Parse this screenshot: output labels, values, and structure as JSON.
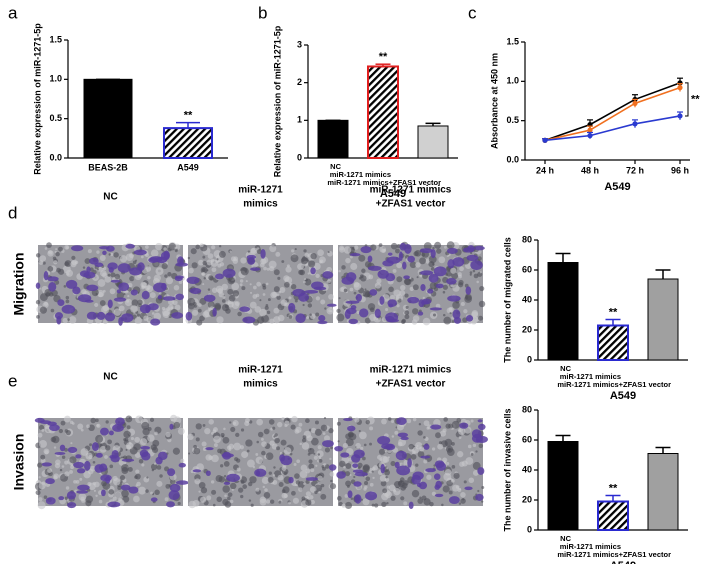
{
  "chart_data": [
    {
      "type": "bar",
      "panel": "a",
      "ylabel": "Relative expression of miR-1271-5p",
      "categories": [
        "BEAS-2B",
        "A549"
      ],
      "values": [
        1.0,
        0.38
      ],
      "errors": [
        0,
        0.07
      ],
      "colors": [
        "#000000",
        "#b0b0b0"
      ],
      "edgecolors": [
        "#000000",
        "#2a2ad0"
      ],
      "hatch": [
        false,
        true
      ],
      "ylim": [
        0,
        1.5
      ],
      "yticks": [
        {
          "value": 0,
          "label": "0.0"
        },
        {
          "value": 0.5,
          "label": "0.5"
        },
        {
          "value": 1,
          "label": "1.0"
        },
        {
          "value": 1.5,
          "label": "1.5"
        }
      ],
      "annotation": {
        "text": "**",
        "category": "A549"
      }
    },
    {
      "type": "bar",
      "panel": "b",
      "ylabel": "Relative expression of miR-1271-5p",
      "xlabel": "A549",
      "categories": [
        "NC",
        "miR-1271 mimics",
        "miR-1271 mimics+ZFAS1 vector"
      ],
      "values": [
        1.0,
        2.43,
        0.85
      ],
      "errors": [
        0,
        0.06,
        0.07
      ],
      "colors": [
        "#000000",
        "#ffffff",
        "#d0d0d0"
      ],
      "edgecolors": [
        "#000000",
        "#e02020",
        "#000000"
      ],
      "hatch": [
        false,
        true,
        false
      ],
      "ylim": [
        0,
        3
      ],
      "yticks": [
        0,
        1,
        2,
        3
      ],
      "annotation": {
        "text": "**",
        "category": "miR-1271 mimics"
      }
    },
    {
      "type": "line",
      "panel": "c",
      "ylabel": "Absorbance at 450 nm",
      "xlabel": "A549",
      "categories": [
        "24 h",
        "48 h",
        "72 h",
        "96 h"
      ],
      "series": [
        {
          "color": "#000000",
          "values": [
            0.25,
            0.45,
            0.77,
            0.98
          ],
          "errors": [
            0.02,
            0.06,
            0.06,
            0.06
          ]
        },
        {
          "color": "#f07020",
          "values": [
            0.25,
            0.38,
            0.72,
            0.92
          ],
          "errors": [
            0.02,
            0.05,
            0.05,
            0.05
          ]
        },
        {
          "color": "#2a3ad0",
          "values": [
            0.25,
            0.31,
            0.46,
            0.56
          ],
          "errors": [
            0.02,
            0.04,
            0.05,
            0.05
          ]
        }
      ],
      "ylim": [
        0,
        1.5
      ],
      "yticks": [
        {
          "value": 0,
          "label": "0.0"
        },
        {
          "value": 0.5,
          "label": "0.5"
        },
        {
          "value": 1,
          "label": "1.0"
        },
        {
          "value": 1.5,
          "label": "1.5"
        }
      ],
      "annotation": {
        "text": "**"
      }
    },
    {
      "type": "bar",
      "panel": "d",
      "ylabel": "The number of migrated cells",
      "xlabel": "A549",
      "categories": [
        "NC",
        "miR-1271 mimics",
        "miR-1271 mimics+ZFAS1 vector"
      ],
      "values": [
        65,
        23,
        54
      ],
      "errors": [
        6,
        4,
        6
      ],
      "colors": [
        "#000000",
        "#ffffff",
        "#a0a0a0"
      ],
      "edgecolors": [
        "#000000",
        "#2a2ad0",
        "#000000"
      ],
      "hatch": [
        false,
        true,
        false
      ],
      "ylim": [
        0,
        80
      ],
      "yticks": [
        0,
        20,
        40,
        60,
        80
      ],
      "annotation": {
        "text": "**",
        "category": "miR-1271 mimics"
      }
    },
    {
      "type": "bar",
      "panel": "e",
      "ylabel": "The number of invasive cells",
      "xlabel": "A549",
      "categories": [
        "NC",
        "miR-1271 mimics",
        "miR-1271 mimics+ZFAS1 vector"
      ],
      "values": [
        59,
        19,
        51
      ],
      "errors": [
        4,
        4,
        4
      ],
      "colors": [
        "#000000",
        "#ffffff",
        "#a0a0a0"
      ],
      "edgecolors": [
        "#000000",
        "#2a2ad0",
        "#000000"
      ],
      "hatch": [
        false,
        true,
        false
      ],
      "ylim": [
        0,
        80
      ],
      "yticks": [
        0,
        20,
        40,
        60,
        80
      ],
      "annotation": {
        "text": "**",
        "category": "miR-1271 mimics"
      }
    }
  ],
  "micrographs": [
    {
      "row": "Migration",
      "columns": [
        [
          "NC"
        ],
        [
          "miR-1271",
          "mimics"
        ],
        [
          "miR-1271 mimics",
          "+ZFAS1 vector"
        ]
      ]
    },
    {
      "row": "Invasion",
      "columns": [
        [
          "NC"
        ],
        [
          "miR-1271",
          "mimics"
        ],
        [
          "miR-1271 mimics",
          "+ZFAS1 vector"
        ]
      ]
    }
  ]
}
